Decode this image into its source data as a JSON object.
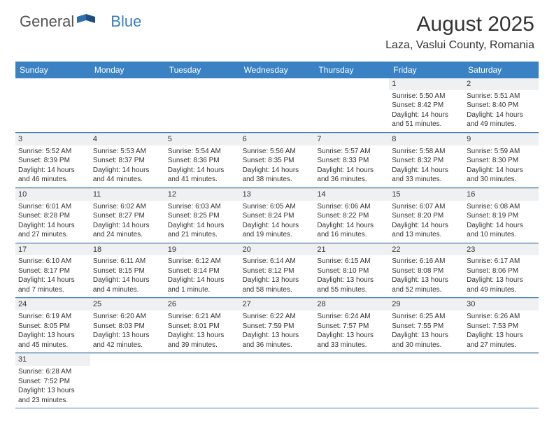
{
  "logo": {
    "text1": "General",
    "text2": "Blue"
  },
  "title": {
    "month_year": "August 2025",
    "location": "Laza, Vaslui County, Romania"
  },
  "colors": {
    "header_bg": "#3a82c4",
    "header_text": "#ffffff",
    "daynum_bg": "#eef0f1",
    "text": "#333333",
    "row_border": "#3a82c4",
    "cell_border": "#d0d0d0",
    "logo_gray": "#555555",
    "logo_blue": "#3a7fc4"
  },
  "day_names": [
    "Sunday",
    "Monday",
    "Tuesday",
    "Wednesday",
    "Thursday",
    "Friday",
    "Saturday"
  ],
  "weeks": [
    [
      null,
      null,
      null,
      null,
      null,
      {
        "n": "1",
        "sr": "Sunrise: 5:50 AM",
        "ss": "Sunset: 8:42 PM",
        "d1": "Daylight: 14 hours",
        "d2": "and 51 minutes."
      },
      {
        "n": "2",
        "sr": "Sunrise: 5:51 AM",
        "ss": "Sunset: 8:40 PM",
        "d1": "Daylight: 14 hours",
        "d2": "and 49 minutes."
      }
    ],
    [
      {
        "n": "3",
        "sr": "Sunrise: 5:52 AM",
        "ss": "Sunset: 8:39 PM",
        "d1": "Daylight: 14 hours",
        "d2": "and 46 minutes."
      },
      {
        "n": "4",
        "sr": "Sunrise: 5:53 AM",
        "ss": "Sunset: 8:37 PM",
        "d1": "Daylight: 14 hours",
        "d2": "and 44 minutes."
      },
      {
        "n": "5",
        "sr": "Sunrise: 5:54 AM",
        "ss": "Sunset: 8:36 PM",
        "d1": "Daylight: 14 hours",
        "d2": "and 41 minutes."
      },
      {
        "n": "6",
        "sr": "Sunrise: 5:56 AM",
        "ss": "Sunset: 8:35 PM",
        "d1": "Daylight: 14 hours",
        "d2": "and 38 minutes."
      },
      {
        "n": "7",
        "sr": "Sunrise: 5:57 AM",
        "ss": "Sunset: 8:33 PM",
        "d1": "Daylight: 14 hours",
        "d2": "and 36 minutes."
      },
      {
        "n": "8",
        "sr": "Sunrise: 5:58 AM",
        "ss": "Sunset: 8:32 PM",
        "d1": "Daylight: 14 hours",
        "d2": "and 33 minutes."
      },
      {
        "n": "9",
        "sr": "Sunrise: 5:59 AM",
        "ss": "Sunset: 8:30 PM",
        "d1": "Daylight: 14 hours",
        "d2": "and 30 minutes."
      }
    ],
    [
      {
        "n": "10",
        "sr": "Sunrise: 6:01 AM",
        "ss": "Sunset: 8:28 PM",
        "d1": "Daylight: 14 hours",
        "d2": "and 27 minutes."
      },
      {
        "n": "11",
        "sr": "Sunrise: 6:02 AM",
        "ss": "Sunset: 8:27 PM",
        "d1": "Daylight: 14 hours",
        "d2": "and 24 minutes."
      },
      {
        "n": "12",
        "sr": "Sunrise: 6:03 AM",
        "ss": "Sunset: 8:25 PM",
        "d1": "Daylight: 14 hours",
        "d2": "and 21 minutes."
      },
      {
        "n": "13",
        "sr": "Sunrise: 6:05 AM",
        "ss": "Sunset: 8:24 PM",
        "d1": "Daylight: 14 hours",
        "d2": "and 19 minutes."
      },
      {
        "n": "14",
        "sr": "Sunrise: 6:06 AM",
        "ss": "Sunset: 8:22 PM",
        "d1": "Daylight: 14 hours",
        "d2": "and 16 minutes."
      },
      {
        "n": "15",
        "sr": "Sunrise: 6:07 AM",
        "ss": "Sunset: 8:20 PM",
        "d1": "Daylight: 14 hours",
        "d2": "and 13 minutes."
      },
      {
        "n": "16",
        "sr": "Sunrise: 6:08 AM",
        "ss": "Sunset: 8:19 PM",
        "d1": "Daylight: 14 hours",
        "d2": "and 10 minutes."
      }
    ],
    [
      {
        "n": "17",
        "sr": "Sunrise: 6:10 AM",
        "ss": "Sunset: 8:17 PM",
        "d1": "Daylight: 14 hours",
        "d2": "and 7 minutes."
      },
      {
        "n": "18",
        "sr": "Sunrise: 6:11 AM",
        "ss": "Sunset: 8:15 PM",
        "d1": "Daylight: 14 hours",
        "d2": "and 4 minutes."
      },
      {
        "n": "19",
        "sr": "Sunrise: 6:12 AM",
        "ss": "Sunset: 8:14 PM",
        "d1": "Daylight: 14 hours",
        "d2": "and 1 minute."
      },
      {
        "n": "20",
        "sr": "Sunrise: 6:14 AM",
        "ss": "Sunset: 8:12 PM",
        "d1": "Daylight: 13 hours",
        "d2": "and 58 minutes."
      },
      {
        "n": "21",
        "sr": "Sunrise: 6:15 AM",
        "ss": "Sunset: 8:10 PM",
        "d1": "Daylight: 13 hours",
        "d2": "and 55 minutes."
      },
      {
        "n": "22",
        "sr": "Sunrise: 6:16 AM",
        "ss": "Sunset: 8:08 PM",
        "d1": "Daylight: 13 hours",
        "d2": "and 52 minutes."
      },
      {
        "n": "23",
        "sr": "Sunrise: 6:17 AM",
        "ss": "Sunset: 8:06 PM",
        "d1": "Daylight: 13 hours",
        "d2": "and 49 minutes."
      }
    ],
    [
      {
        "n": "24",
        "sr": "Sunrise: 6:19 AM",
        "ss": "Sunset: 8:05 PM",
        "d1": "Daylight: 13 hours",
        "d2": "and 45 minutes."
      },
      {
        "n": "25",
        "sr": "Sunrise: 6:20 AM",
        "ss": "Sunset: 8:03 PM",
        "d1": "Daylight: 13 hours",
        "d2": "and 42 minutes."
      },
      {
        "n": "26",
        "sr": "Sunrise: 6:21 AM",
        "ss": "Sunset: 8:01 PM",
        "d1": "Daylight: 13 hours",
        "d2": "and 39 minutes."
      },
      {
        "n": "27",
        "sr": "Sunrise: 6:22 AM",
        "ss": "Sunset: 7:59 PM",
        "d1": "Daylight: 13 hours",
        "d2": "and 36 minutes."
      },
      {
        "n": "28",
        "sr": "Sunrise: 6:24 AM",
        "ss": "Sunset: 7:57 PM",
        "d1": "Daylight: 13 hours",
        "d2": "and 33 minutes."
      },
      {
        "n": "29",
        "sr": "Sunrise: 6:25 AM",
        "ss": "Sunset: 7:55 PM",
        "d1": "Daylight: 13 hours",
        "d2": "and 30 minutes."
      },
      {
        "n": "30",
        "sr": "Sunrise: 6:26 AM",
        "ss": "Sunset: 7:53 PM",
        "d1": "Daylight: 13 hours",
        "d2": "and 27 minutes."
      }
    ],
    [
      {
        "n": "31",
        "sr": "Sunrise: 6:28 AM",
        "ss": "Sunset: 7:52 PM",
        "d1": "Daylight: 13 hours",
        "d2": "and 23 minutes."
      },
      null,
      null,
      null,
      null,
      null,
      null
    ]
  ]
}
